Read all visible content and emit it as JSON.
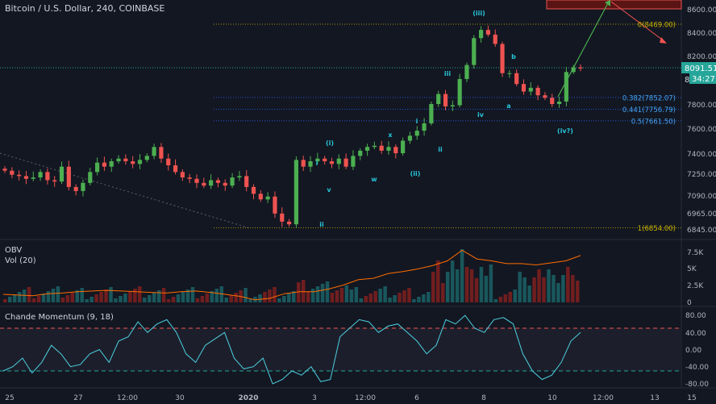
{
  "symbol_title": "Bitcoin / U.S. Dollar, 240, COINBASE",
  "colors": {
    "background": "#131722",
    "up_candle": "#26a69a",
    "up_candle_bright": "#4caf50",
    "down_candle": "#ef5350",
    "wave_label": "#26c6da",
    "fib_line": "#c9b400",
    "fib_label_blue": "#42a5f5",
    "obv_line": "#ff6d00",
    "cmo_line": "#4dd0e1",
    "level_red": "#ef5350",
    "level_green": "#26a69a",
    "price_tag": "#26a69a",
    "target_arrow": "#4caf50"
  },
  "main_panel": {
    "price_axis_labels": [
      "8600.00",
      "8400.00",
      "8200.00",
      "8000.00",
      "7800.00",
      "7600.00",
      "7400.00",
      "7250.00",
      "7090.00",
      "6965.00",
      "6845.00"
    ],
    "last_price_tag": "8091.51",
    "countdown_tag": "34:27",
    "countdown_prefix": "8",
    "fib_levels": [
      {
        "label": "0(8469.00)",
        "price": 8469
      },
      {
        "label": "0.382(7852.07)",
        "price": 7852.07
      },
      {
        "label": "0.441(7756.79)",
        "price": 7756.79
      },
      {
        "label": "0.5(7661.50)",
        "price": 7661.5
      },
      {
        "label": "1(6854.00)",
        "price": 6854
      }
    ],
    "wave_labels": [
      "(i)",
      "(ii)",
      "(iii)",
      "(iv?)",
      "i",
      "ii",
      "iii",
      "iv",
      "v",
      "w",
      "x",
      "a",
      "b",
      "i",
      "ii",
      "iii",
      "iv"
    ]
  },
  "obv_panel": {
    "title": "OBV",
    "subtitle": "Vol (20)",
    "axis_labels": [
      "7.5K",
      "5K",
      "2.5K",
      "0"
    ]
  },
  "cmo_panel": {
    "title": "Chande Momentum (9, 18)",
    "axis_labels": [
      "80.00",
      "40.00",
      "0.00",
      "-40.00",
      "-80.00"
    ],
    "upper_band": 50,
    "lower_band": -50
  },
  "time_axis_labels": [
    "25",
    "27",
    "12:00",
    "30",
    "2020",
    "3",
    "12:00",
    "6",
    "8",
    "10",
    "12:00",
    "13",
    "15"
  ],
  "chart_data": {
    "type": "candlestick",
    "title": "Bitcoin / U.S. Dollar, 240, COINBASE",
    "ylim": [
      6800,
      8650
    ],
    "series": [
      {
        "name": "BTCUSD 4h",
        "approx_close_path": [
          7270,
          7240,
          7230,
          7210,
          7220,
          7260,
          7200,
          7190,
          7300,
          7150,
          7120,
          7180,
          7260,
          7330,
          7300,
          7340,
          7360,
          7340,
          7320,
          7350,
          7380,
          7450,
          7360,
          7310,
          7260,
          7220,
          7210,
          7180,
          7160,
          7200,
          7180,
          7160,
          7220,
          7230,
          7150,
          7100,
          7060,
          7080,
          6960,
          6900,
          6880,
          7350,
          7300,
          7340,
          7360,
          7340,
          7320,
          7360,
          7300,
          7380,
          7420,
          7450,
          7460,
          7420,
          7450,
          7400,
          7500,
          7540,
          7580,
          7640,
          7800,
          7880,
          7780,
          7790,
          8000,
          8120,
          8350,
          8420,
          8380,
          8300,
          8050,
          8050,
          7960,
          7900,
          7930,
          7870,
          7850,
          7800,
          7820,
          8060,
          8100,
          8091
        ]
      }
    ],
    "annotations": [
      "0(8469.00)",
      "0.382(7852.07)",
      "0.441(7756.79)",
      "0.5(7661.50)",
      "1(6854.00)"
    ],
    "obv": [
      1.2,
      1.1,
      1.0,
      1.3,
      1.4,
      1.6,
      1.7,
      1.8,
      1.7,
      1.6,
      1.5,
      1.4,
      1.6,
      1.7,
      1.5,
      1.2,
      0.9,
      0.4,
      0.6,
      1.3,
      1.6,
      1.6,
      2.0,
      2.6,
      3.4,
      3.6,
      4.3,
      4.6,
      5.0,
      5.5,
      6.2,
      7.8,
      6.5,
      6.2,
      5.8,
      5.8,
      5.6,
      5.9,
      6.2,
      7.0
    ],
    "cmo": [
      -50,
      -40,
      -20,
      -55,
      -30,
      10,
      -10,
      -40,
      -35,
      -10,
      0,
      -30,
      20,
      30,
      65,
      40,
      60,
      70,
      40,
      -10,
      -30,
      10,
      25,
      40,
      -20,
      -45,
      -40,
      -20,
      -80,
      -70,
      -50,
      -60,
      -40,
      -75,
      -70,
      30,
      50,
      70,
      65,
      40,
      55,
      60,
      40,
      20,
      -10,
      10,
      70,
      60,
      80,
      50,
      40,
      70,
      75,
      60,
      -10,
      -50,
      -70,
      -60,
      -30,
      20,
      40
    ]
  }
}
